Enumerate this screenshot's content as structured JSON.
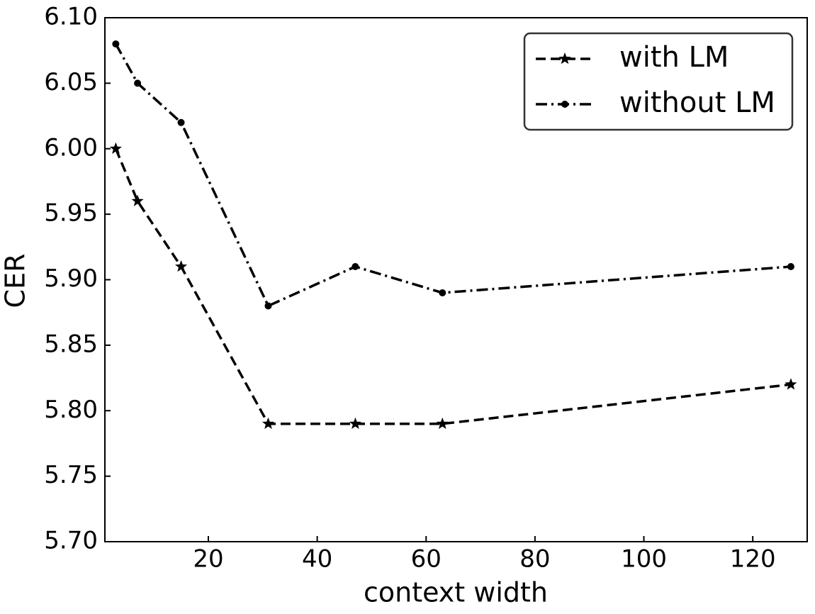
{
  "chart_data": {
    "type": "line",
    "x_label": "context width",
    "y_label": "CER",
    "x": [
      3,
      7,
      15,
      31,
      47,
      63,
      127
    ],
    "series": [
      {
        "name": "with LM",
        "color": "#000000",
        "linestyle": "dashed",
        "marker": "star",
        "values": [
          6.0,
          5.96,
          5.91,
          5.79,
          5.79,
          5.79,
          5.82
        ]
      },
      {
        "name": "without LM",
        "color": "#000000",
        "linestyle": "dashdot",
        "marker": "circle",
        "values": [
          6.08,
          6.05,
          6.02,
          5.88,
          5.91,
          5.89,
          5.91
        ]
      }
    ],
    "xlim": [
      1,
      130
    ],
    "xticks": [
      20,
      40,
      60,
      80,
      100,
      120
    ],
    "ylim": [
      5.7,
      6.1
    ],
    "yticks": [
      {
        "value": 5.7,
        "label": "5.70"
      },
      {
        "value": 5.75,
        "label": "5.75"
      },
      {
        "value": 5.8,
        "label": "5.80"
      },
      {
        "value": 5.85,
        "label": "5.85"
      },
      {
        "value": 5.9,
        "label": "5.90"
      },
      {
        "value": 5.95,
        "label": "5.95"
      },
      {
        "value": 6.0,
        "label": "6.00"
      },
      {
        "value": 6.05,
        "label": "6.05"
      },
      {
        "value": 6.1,
        "label": "6.10"
      }
    ],
    "legend": "upper right",
    "grid": false
  }
}
